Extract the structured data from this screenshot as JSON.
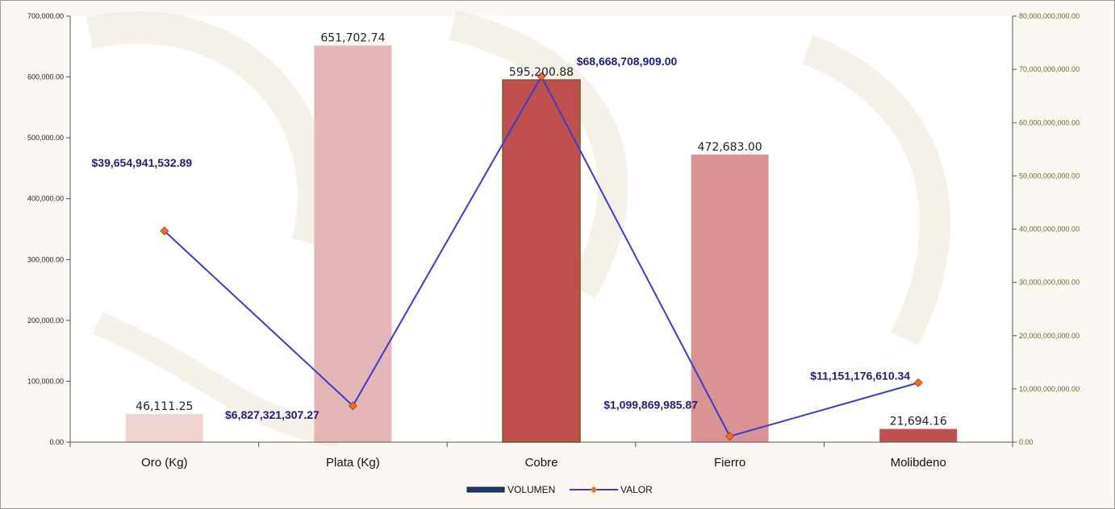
{
  "chart_data": {
    "type": "bar",
    "categories": [
      "Oro (Kg)",
      "Plata (Kg)",
      "Cobre",
      "Fierro",
      "Molibdeno"
    ],
    "series": [
      {
        "name": "VOLUMEN",
        "type": "bar",
        "axis": "left",
        "values": [
          46111.25,
          651702.74,
          595200.88,
          472683.0,
          21694.16
        ],
        "labels": [
          "46,111.25",
          "651,702.74",
          "595,200.88",
          "472,683.00",
          "21,694.16"
        ],
        "colors": [
          "#f1d3d2",
          "#e4b6b5",
          "#c0504d",
          "#d89392",
          "#c0504d"
        ]
      },
      {
        "name": "VALOR",
        "type": "line",
        "axis": "right",
        "values": [
          39654941532.89,
          6827321307.27,
          68668708909.0,
          1099869985.87,
          11151176610.34
        ],
        "labels": [
          "$39,654,941,532.89",
          "$6,827,321,307.27",
          "$68,668,708,909.00",
          "$1,099,869,985.87",
          "$11,151,176,610.34"
        ],
        "color": "#3b3bd1",
        "marker_color": "#e8721f"
      }
    ],
    "y_left": {
      "ylim": [
        0,
        700000
      ],
      "ticks": [
        "0.00",
        "100,000.00",
        "200,000.00",
        "300,000.00",
        "400,000.00",
        "500,000.00",
        "600,000.00",
        "700,000.00"
      ]
    },
    "y_right": {
      "ylim": [
        0,
        80000000000
      ],
      "ticks": [
        "0.00",
        "10,000,000,000.00",
        "20,000,000,000.00",
        "30,000,000,000.00",
        "40,000,000,000.00",
        "50,000,000,000.00",
        "60,000,000,000.00",
        "70,000,000,000.00",
        "80,000,000,000.00"
      ]
    },
    "grid": false,
    "legend": {
      "position": "bottom",
      "entries": [
        "VOLUMEN",
        "VALOR"
      ],
      "swatch_color": "#1f3864"
    }
  }
}
